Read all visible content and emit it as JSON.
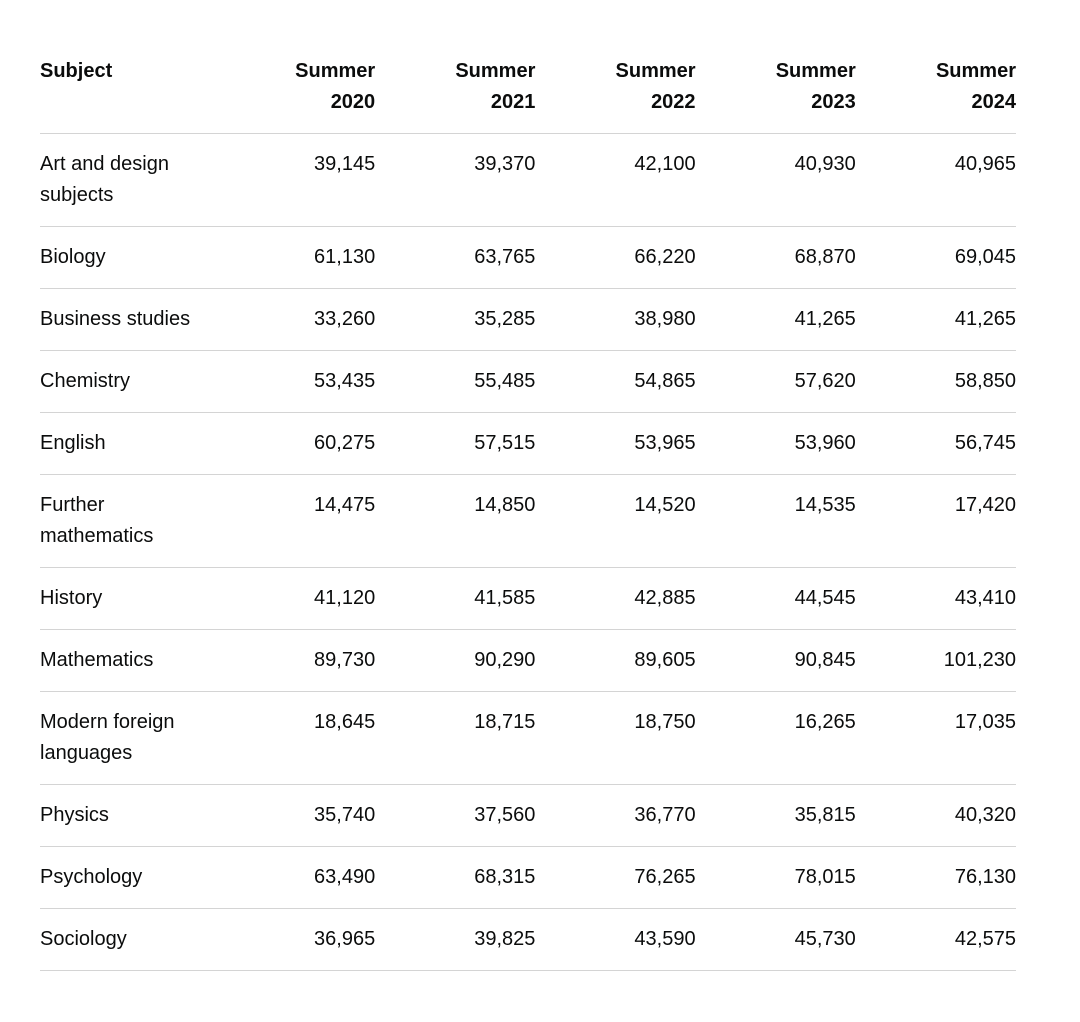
{
  "page": {
    "background_color": "#ffffff",
    "text_color": "#0b0c0c",
    "row_border_color": "#d4d4d4"
  },
  "table": {
    "header": {
      "subject_label": "Subject",
      "year_labels": [
        "Summer 2020",
        "Summer 2021",
        "Summer 2022",
        "Summer 2023",
        "Summer 2024"
      ]
    },
    "rows": [
      {
        "subject": "Art and design subjects",
        "values": [
          "39,145",
          "39,370",
          "42,100",
          "40,930",
          "40,965"
        ]
      },
      {
        "subject": "Biology",
        "values": [
          "61,130",
          "63,765",
          "66,220",
          "68,870",
          "69,045"
        ]
      },
      {
        "subject": "Business studies",
        "values": [
          "33,260",
          "35,285",
          "38,980",
          "41,265",
          "41,265"
        ]
      },
      {
        "subject": "Chemistry",
        "values": [
          "53,435",
          "55,485",
          "54,865",
          "57,620",
          "58,850"
        ]
      },
      {
        "subject": "English",
        "values": [
          "60,275",
          "57,515",
          "53,965",
          "53,960",
          "56,745"
        ]
      },
      {
        "subject": "Further mathematics",
        "values": [
          "14,475",
          "14,850",
          "14,520",
          "14,535",
          "17,420"
        ]
      },
      {
        "subject": "History",
        "values": [
          "41,120",
          "41,585",
          "42,885",
          "44,545",
          "43,410"
        ]
      },
      {
        "subject": "Mathematics",
        "values": [
          "89,730",
          "90,290",
          "89,605",
          "90,845",
          "101,230"
        ]
      },
      {
        "subject": "Modern foreign languages",
        "values": [
          "18,645",
          "18,715",
          "18,750",
          "16,265",
          "17,035"
        ]
      },
      {
        "subject": "Physics",
        "values": [
          "35,740",
          "37,560",
          "36,770",
          "35,815",
          "40,320"
        ]
      },
      {
        "subject": "Psychology",
        "values": [
          "63,490",
          "68,315",
          "76,265",
          "78,015",
          "76,130"
        ]
      },
      {
        "subject": "Sociology",
        "values": [
          "36,965",
          "39,825",
          "43,590",
          "45,730",
          "42,575"
        ]
      }
    ]
  },
  "chart_data": {
    "type": "table",
    "title": "",
    "columns": [
      "Subject",
      "Summer 2020",
      "Summer 2021",
      "Summer 2022",
      "Summer 2023",
      "Summer 2024"
    ],
    "categories": [
      "Summer 2020",
      "Summer 2021",
      "Summer 2022",
      "Summer 2023",
      "Summer 2024"
    ],
    "series": [
      {
        "name": "Art and design subjects",
        "values": [
          39145,
          39370,
          42100,
          40930,
          40965
        ]
      },
      {
        "name": "Biology",
        "values": [
          61130,
          63765,
          66220,
          68870,
          69045
        ]
      },
      {
        "name": "Business studies",
        "values": [
          33260,
          35285,
          38980,
          41265,
          41265
        ]
      },
      {
        "name": "Chemistry",
        "values": [
          53435,
          55485,
          54865,
          57620,
          58850
        ]
      },
      {
        "name": "English",
        "values": [
          60275,
          57515,
          53965,
          53960,
          56745
        ]
      },
      {
        "name": "Further mathematics",
        "values": [
          14475,
          14850,
          14520,
          14535,
          17420
        ]
      },
      {
        "name": "History",
        "values": [
          41120,
          41585,
          42885,
          44545,
          43410
        ]
      },
      {
        "name": "Mathematics",
        "values": [
          89730,
          90290,
          89605,
          90845,
          101230
        ]
      },
      {
        "name": "Modern foreign languages",
        "values": [
          18645,
          18715,
          18750,
          16265,
          17035
        ]
      },
      {
        "name": "Physics",
        "values": [
          35740,
          37560,
          36770,
          35815,
          40320
        ]
      },
      {
        "name": "Psychology",
        "values": [
          63490,
          68315,
          76265,
          78015,
          76130
        ]
      },
      {
        "name": "Sociology",
        "values": [
          36965,
          39825,
          43590,
          45730,
          42575
        ]
      }
    ]
  }
}
